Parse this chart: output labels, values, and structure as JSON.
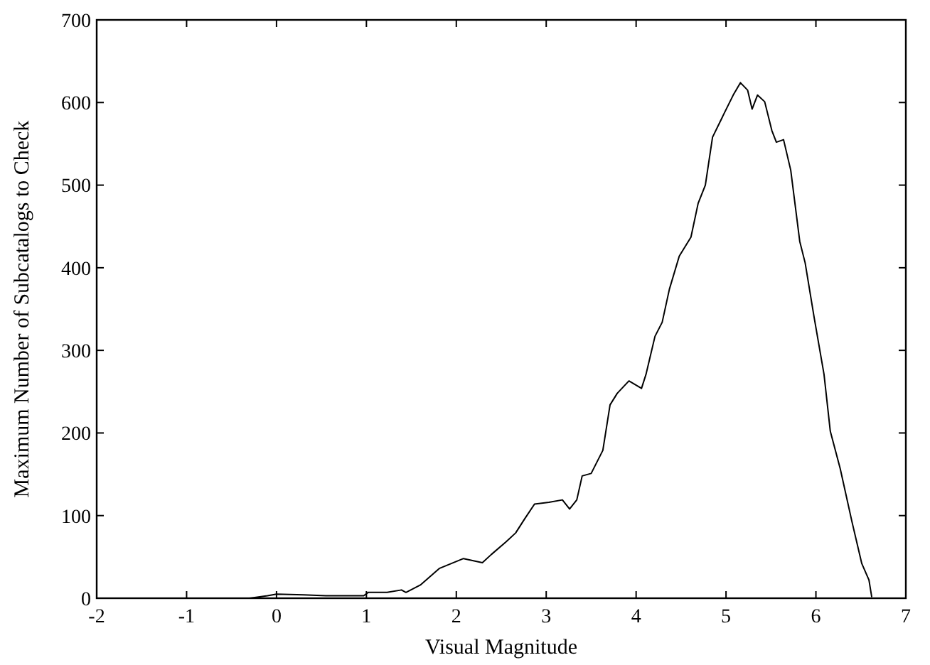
{
  "chart_data": {
    "type": "line",
    "xlabel": "Visual Magnitude",
    "ylabel": "Maximum Number of Subcatalogs to Check",
    "xlim": [
      -2,
      7
    ],
    "ylim": [
      0,
      700
    ],
    "xticks": [
      -2,
      -1,
      0,
      1,
      2,
      3,
      4,
      5,
      6,
      7
    ],
    "yticks": [
      0,
      100,
      200,
      300,
      400,
      500,
      600,
      700
    ],
    "grid": false,
    "marker": "none",
    "line_style": "solid",
    "series": [
      {
        "color": "#000000",
        "x": [
          -1.65,
          -1.3,
          -0.3,
          -0.1,
          0,
          0.3,
          0.55,
          0.97,
          1.02,
          1.23,
          1.39,
          1.44,
          1.6,
          1.81,
          2.08,
          2.29,
          2.39,
          2.55,
          2.66,
          2.76,
          2.87,
          3.03,
          3.18,
          3.26,
          3.34,
          3.4,
          3.5,
          3.63,
          3.71,
          3.79,
          3.92,
          4.06,
          4.11,
          4.21,
          4.29,
          4.37,
          4.48,
          4.61,
          4.69,
          4.77,
          4.85,
          4.98,
          5.08,
          5.16,
          5.24,
          5.29,
          5.35,
          5.43,
          5.51,
          5.56,
          5.64,
          5.72,
          5.82,
          5.88,
          5.98,
          6.09,
          6.16,
          6.27,
          6.4,
          6.51,
          6.59,
          6.62
        ],
        "values": [
          0,
          0,
          0,
          3,
          5,
          4,
          3,
          3,
          7,
          7,
          10,
          7,
          16,
          36,
          48,
          43,
          53,
          68,
          79,
          96,
          114,
          116,
          119,
          108,
          119,
          148,
          151,
          179,
          234,
          248,
          263,
          254,
          271,
          317,
          334,
          374,
          414,
          437,
          478,
          500,
          558,
          587,
          609,
          624,
          615,
          592,
          609,
          601,
          566,
          552,
          555,
          518,
          432,
          406,
          340,
          271,
          202,
          157,
          93,
          42,
          22,
          2
        ]
      }
    ]
  }
}
